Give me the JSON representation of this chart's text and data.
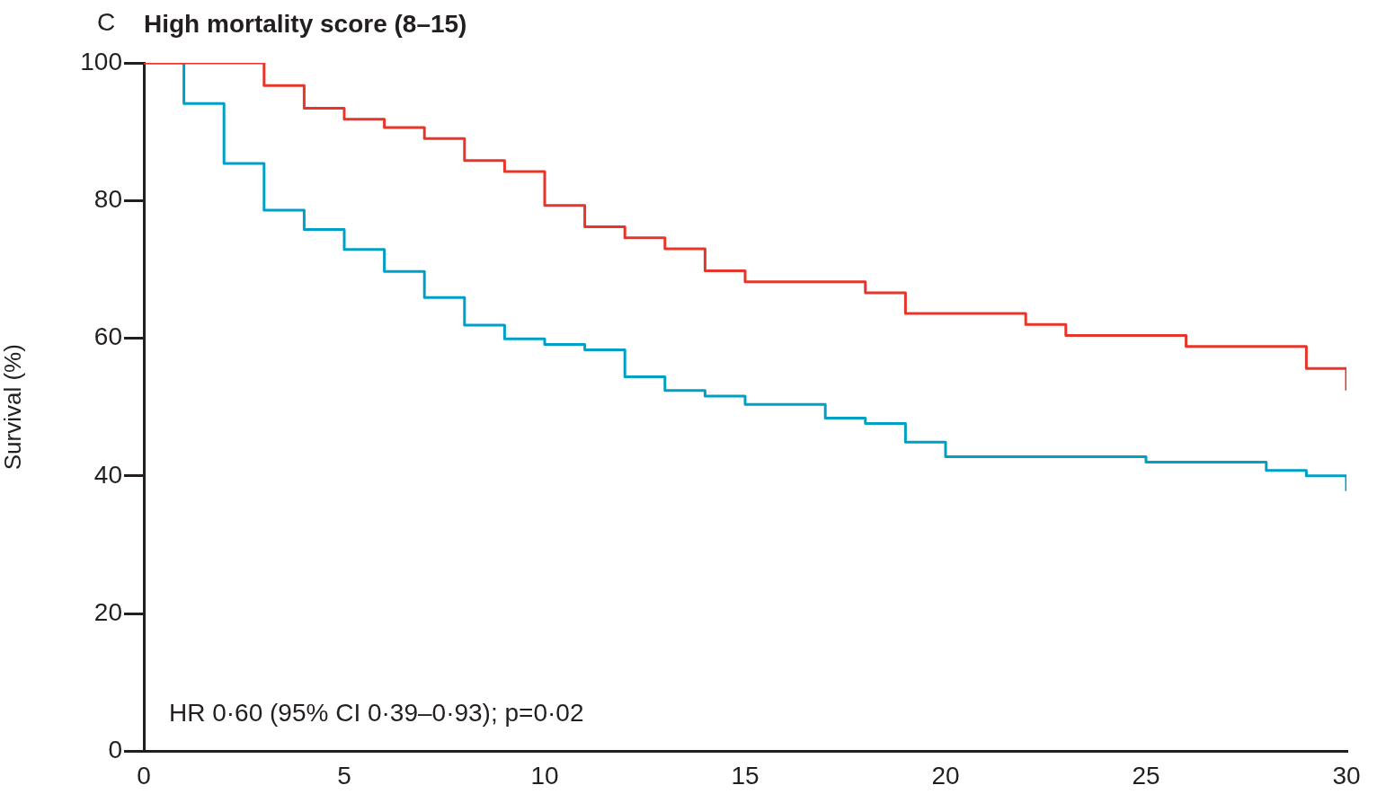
{
  "chart_data": {
    "type": "step",
    "title": "High mortality score (8–15)",
    "ylabel": "Survival (%)",
    "xlim": [
      0,
      30
    ],
    "xticks": [
      0,
      5,
      10,
      15,
      20,
      25,
      30
    ],
    "ylim": [
      0,
      100
    ],
    "yticks": [
      0,
      20,
      40,
      60,
      80,
      100
    ],
    "grid": false,
    "legend": false,
    "marker": "none",
    "annotations": [
      "C",
      "HR 0·60 (95% CI 0·39–0·93); p=0·02"
    ],
    "series": [
      {
        "color": "#e8352a",
        "x": [
          0,
          3,
          4,
          5,
          6,
          7,
          8,
          9,
          10,
          11,
          12,
          13,
          14,
          15,
          18,
          19,
          22,
          23,
          26,
          29,
          30
        ],
        "values": [
          100,
          96.7,
          93.4,
          91.8,
          90.6,
          89.0,
          85.8,
          84.2,
          79.3,
          76.2,
          74.6,
          73.0,
          69.8,
          68.2,
          66.6,
          63.6,
          62.0,
          60.4,
          58.8,
          55.6,
          52.4
        ]
      },
      {
        "color": "#00a0c6",
        "x": [
          0,
          1,
          2,
          3,
          4,
          5,
          6,
          7,
          8,
          9,
          10,
          11,
          12,
          13,
          14,
          15,
          17,
          18,
          19,
          20,
          25,
          28,
          29,
          30
        ],
        "values": [
          100,
          94.1,
          85.4,
          78.6,
          75.8,
          72.9,
          69.7,
          65.9,
          61.9,
          59.9,
          59.1,
          58.3,
          54.4,
          52.4,
          51.6,
          50.4,
          48.4,
          47.6,
          44.9,
          42.8,
          42.0,
          40.8,
          40.0,
          37.8
        ]
      }
    ]
  }
}
